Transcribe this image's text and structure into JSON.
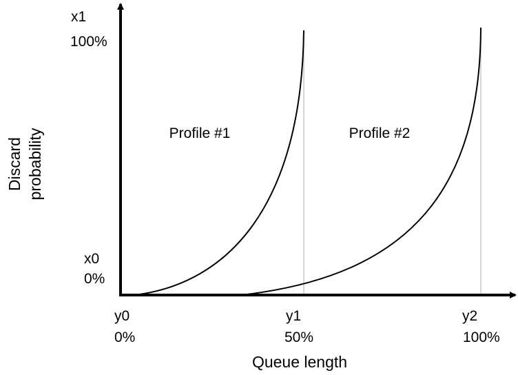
{
  "y_axis": {
    "title_lines": [
      "Discard",
      "probability"
    ],
    "top_label": "x1",
    "top_value": "100%",
    "bottom_label": "x0",
    "bottom_value": "0%"
  },
  "x_axis": {
    "title": "Queue length",
    "ticks": [
      {
        "label": "y0",
        "value": "0%"
      },
      {
        "label": "y1",
        "value": "50%"
      },
      {
        "label": "y2",
        "value": "100%"
      }
    ]
  },
  "profiles": [
    {
      "label": "Profile #1"
    },
    {
      "label": "Profile #2"
    }
  ],
  "colors": {
    "axis": "#000000",
    "curve": "#000000",
    "guide": "#c8c8c8"
  }
}
